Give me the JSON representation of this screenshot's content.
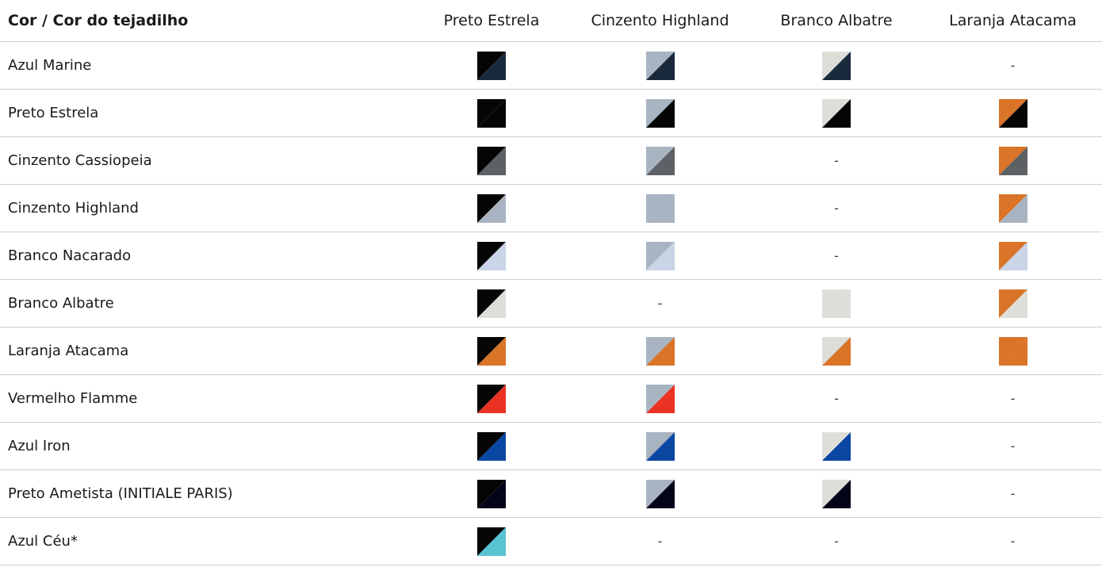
{
  "header": {
    "row_label": "Cor / Cor do tejadilho",
    "columns": [
      "Preto Estrela",
      "Cinzento Highland",
      "Branco Albatre",
      "Laranja Atacama"
    ]
  },
  "colors": {
    "azul_marine": "#1a2a3c",
    "preto_estrela": "#050505",
    "cinzento_cassiopeia": "#5d6064",
    "cinzento_highland": "#a9b4c2",
    "branco_nacarado": "#c9d5e6",
    "branco_albatre": "#deded9",
    "laranja_atacama": "#d97428",
    "vermelho_flamme": "#ea3324",
    "azul_iron": "#0a47a3",
    "preto_ametista": "#05051a",
    "azul_ceu": "#58c3d3"
  },
  "rows": [
    {
      "label": "Azul Marine",
      "body": "azul_marine",
      "cells": [
        "preto_estrela",
        "cinzento_highland",
        "branco_albatre",
        "-"
      ]
    },
    {
      "label": "Preto Estrela",
      "body": "preto_estrela",
      "cells": [
        "solid",
        "cinzento_highland",
        "branco_albatre",
        "laranja_atacama"
      ]
    },
    {
      "label": "Cinzento Cassiopeia",
      "body": "cinzento_cassiopeia",
      "cells": [
        "preto_estrela",
        "cinzento_highland",
        "-",
        "laranja_atacama"
      ]
    },
    {
      "label": "Cinzento Highland",
      "body": "cinzento_highland",
      "cells": [
        "preto_estrela",
        "solid",
        "-",
        "laranja_atacama"
      ]
    },
    {
      "label": "Branco Nacarado",
      "body": "branco_nacarado",
      "cells": [
        "preto_estrela",
        "cinzento_highland",
        "-",
        "laranja_atacama"
      ]
    },
    {
      "label": "Branco Albatre",
      "body": "branco_albatre",
      "cells": [
        "preto_estrela",
        "-",
        "solid",
        "laranja_atacama"
      ]
    },
    {
      "label": "Laranja Atacama",
      "body": "laranja_atacama",
      "cells": [
        "preto_estrela",
        "cinzento_highland",
        "branco_albatre",
        "solid"
      ]
    },
    {
      "label": "Vermelho Flamme",
      "body": "vermelho_flamme",
      "cells": [
        "preto_estrela",
        "cinzento_highland",
        "-",
        "-"
      ]
    },
    {
      "label": "Azul Iron",
      "body": "azul_iron",
      "cells": [
        "preto_estrela",
        "cinzento_highland",
        "branco_albatre",
        "-"
      ]
    },
    {
      "label": "Preto Ametista (INITIALE PARIS)",
      "body": "preto_ametista",
      "cells": [
        "preto_estrela",
        "cinzento_highland",
        "branco_albatre",
        "-"
      ]
    },
    {
      "label": "Azul Céu*",
      "body": "azul_ceu",
      "cells": [
        "preto_estrela",
        "-",
        "-",
        "-"
      ]
    }
  ]
}
